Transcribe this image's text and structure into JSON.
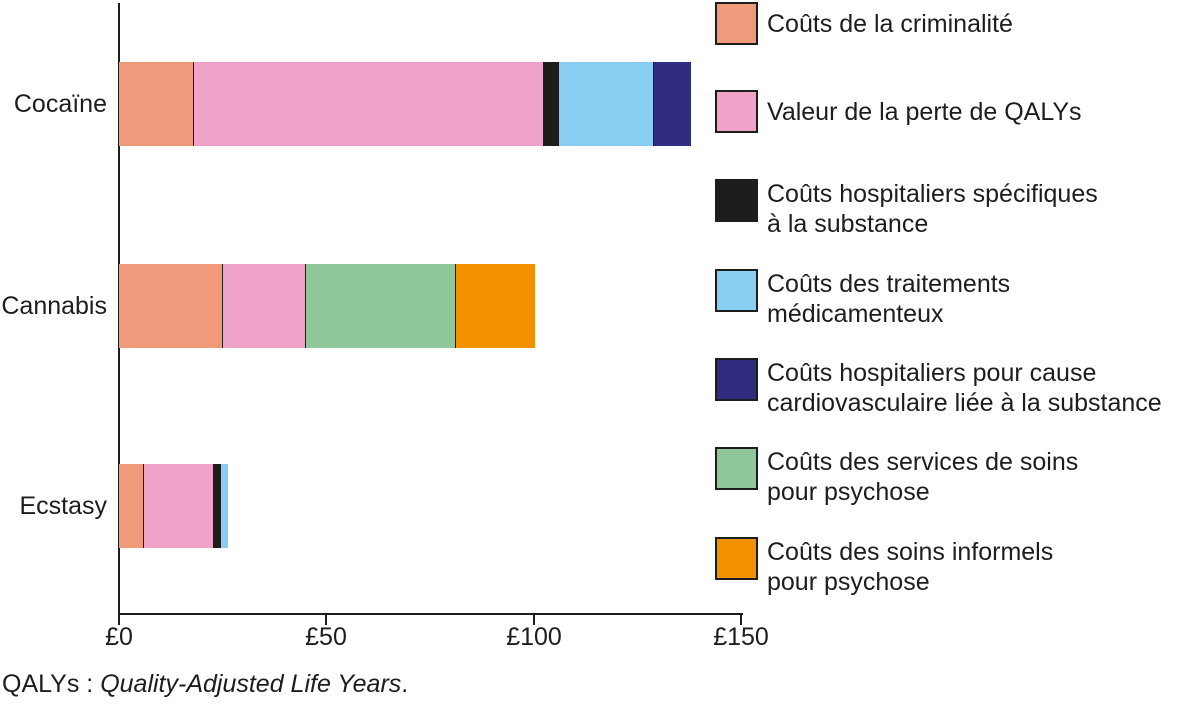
{
  "chart_data": {
    "type": "stacked_bar_horizontal",
    "title": "",
    "xlabel": "",
    "ylabel": "",
    "unit": "£",
    "x_axis": {
      "min": 0,
      "max": 150,
      "ticks": [
        {
          "label": "£0",
          "value": 0
        },
        {
          "label": "£50",
          "value": 50
        },
        {
          "label": "£100",
          "value": 100
        },
        {
          "label": "£150",
          "value": 150
        }
      ]
    },
    "legend_position": "right",
    "legend": [
      {
        "key": "crime",
        "lines": [
          "Coûts de la criminalité"
        ],
        "color": "#F0997B"
      },
      {
        "key": "qalys",
        "lines": [
          "Valeur de la perte de QALYs"
        ],
        "color": "#F0A3C9"
      },
      {
        "key": "hosp_specific",
        "lines": [
          "Coûts hospitaliers spécifiques",
          "à la substance"
        ],
        "color": "#1D1D1B"
      },
      {
        "key": "med_treatment",
        "lines": [
          "Coûts des traitements",
          "médicamenteux"
        ],
        "color": "#87CEF2"
      },
      {
        "key": "hosp_cardio",
        "lines": [
          "Coûts hospitaliers pour cause",
          "cardiovasculaire liée à la substance"
        ],
        "color": "#2F2B7F"
      },
      {
        "key": "psychosis_services",
        "lines": [
          "Coûts des services de soins",
          "pour psychose"
        ],
        "color": "#90C79A"
      },
      {
        "key": "psychosis_informal",
        "lines": [
          "Coûts des soins informels",
          "pour psychose"
        ],
        "color": "#F39200"
      }
    ],
    "categories": [
      "Cocaïne",
      "Cannabis",
      "Ecstasy"
    ],
    "bars": [
      {
        "category": "Cocaïne",
        "total": 138,
        "segments": [
          {
            "key": "crime",
            "value": 18
          },
          {
            "key": "qalys",
            "value": 84.5
          },
          {
            "key": "hosp_specific",
            "value": 3.5
          },
          {
            "key": "med_treatment",
            "value": 23
          },
          {
            "key": "hosp_cardio",
            "value": 9
          }
        ]
      },
      {
        "category": "Cannabis",
        "total": 100,
        "segments": [
          {
            "key": "crime",
            "value": 25
          },
          {
            "key": "qalys",
            "value": 20
          },
          {
            "key": "psychosis_services",
            "value": 36.3
          },
          {
            "key": "psychosis_informal",
            "value": 19
          }
        ]
      },
      {
        "category": "Ecstasy",
        "total": 26.3,
        "segments": [
          {
            "key": "crime",
            "value": 6
          },
          {
            "key": "qalys",
            "value": 17
          },
          {
            "key": "hosp_specific",
            "value": 1.7
          },
          {
            "key": "med_treatment",
            "value": 1.6
          }
        ]
      }
    ]
  },
  "footnote": {
    "prefix": "QALYs : ",
    "italic": "Quality-Adjusted Life Years",
    "suffix": "."
  },
  "colors": {
    "ink": "#1D1D1B",
    "background": "#FFFFFF"
  }
}
